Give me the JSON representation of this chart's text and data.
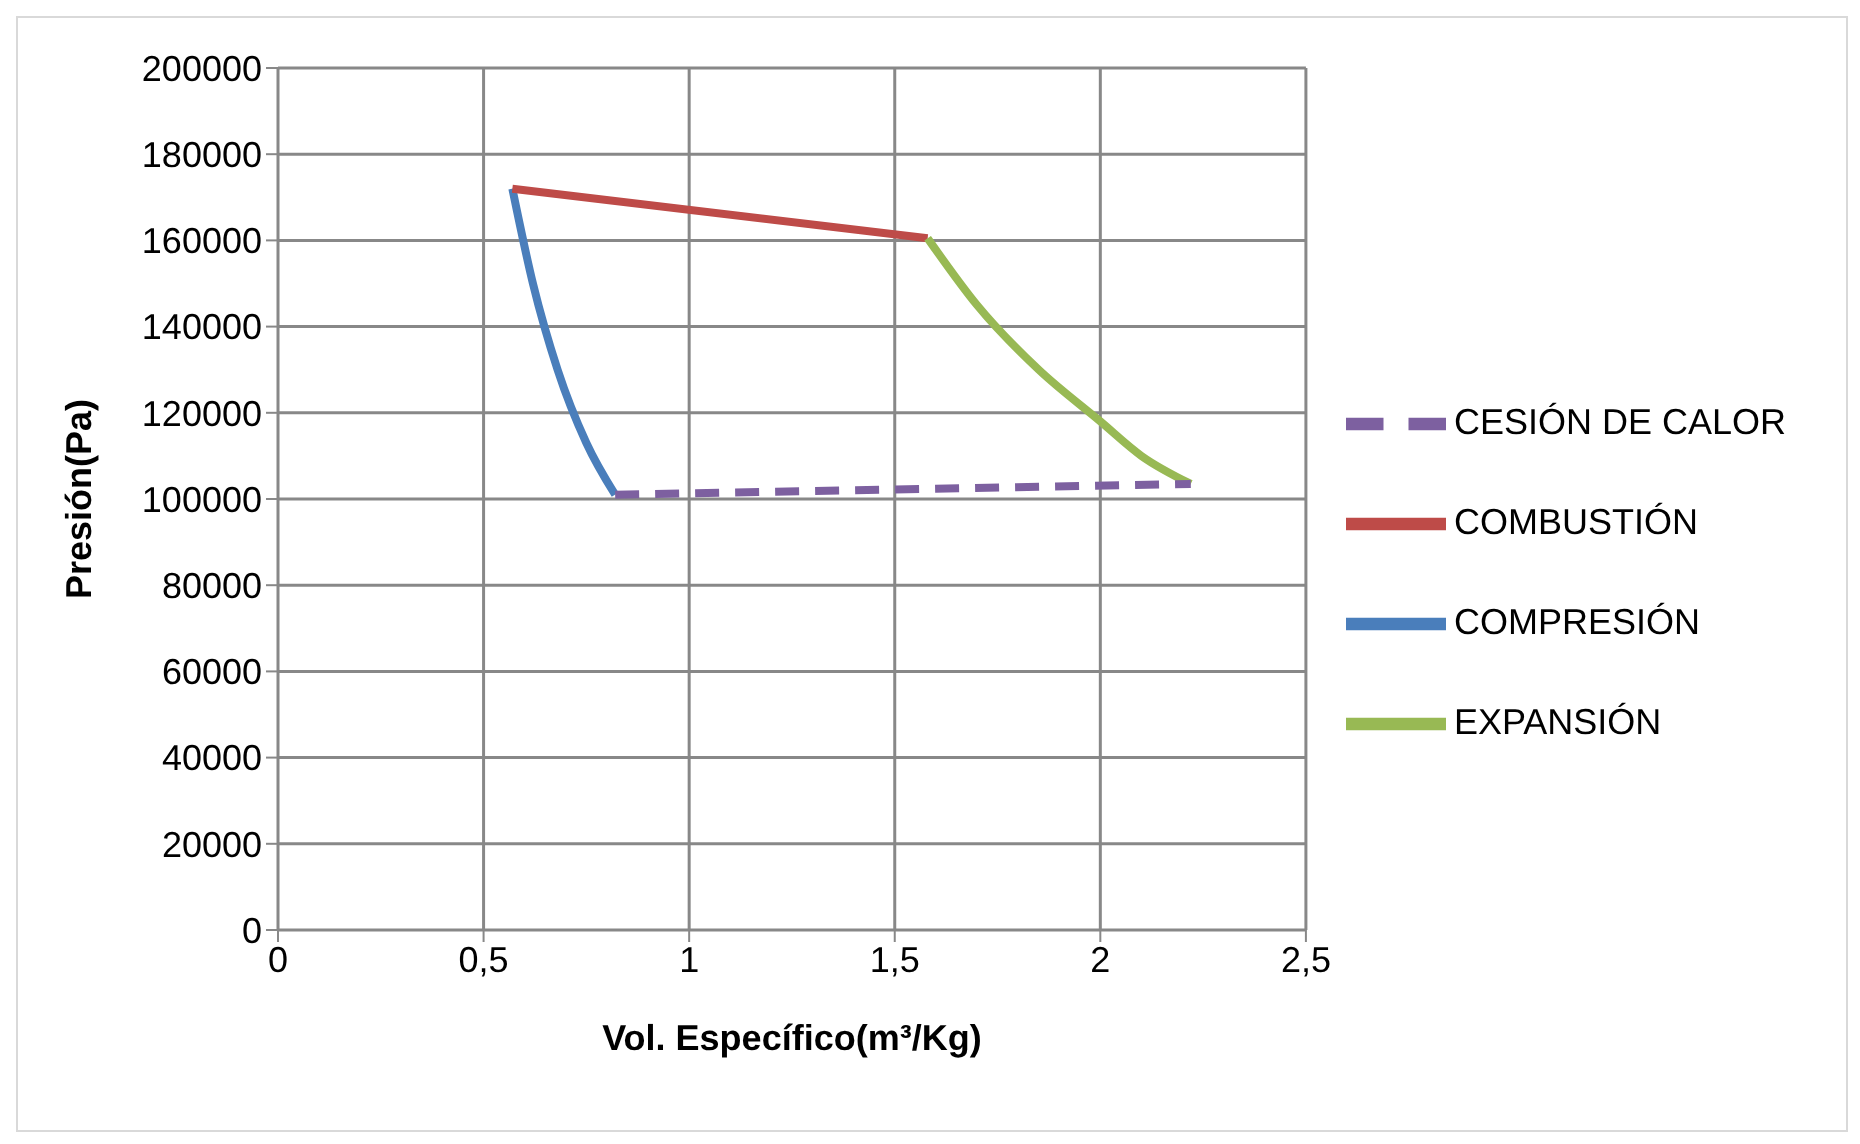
{
  "chart_data": {
    "type": "line",
    "xlabel": "Vol. Específico(m³/Kg)",
    "ylabel": "Presión(Pa)",
    "xlim": [
      0,
      2.5
    ],
    "xticks": [
      0,
      {
        "value": 0.5,
        "label": "0,5"
      },
      1,
      {
        "value": 1.5,
        "label": "1,5"
      },
      2,
      {
        "value": 2.5,
        "label": "2,5"
      }
    ],
    "ylim": [
      0,
      200000
    ],
    "yticks": [
      0,
      20000,
      40000,
      60000,
      80000,
      100000,
      120000,
      140000,
      160000,
      180000,
      200000
    ],
    "grid": true,
    "legend": "right",
    "marker": "none",
    "series": [
      {
        "name": "COMPRESIÓN",
        "color": "#4a7ebb",
        "x": [
          0.57,
          0.62,
          0.68,
          0.75,
          0.82
        ],
        "values": [
          172000,
          150000,
          130000,
          113000,
          101000
        ]
      },
      {
        "name": "COMBUSTIÓN",
        "color": "#be4b48",
        "x": [
          0.57,
          1.58
        ],
        "values": [
          172000,
          160500
        ]
      },
      {
        "name": "EXPANSIÓN",
        "color": "#98b954",
        "x": [
          1.58,
          1.7,
          1.85,
          2.0,
          2.1,
          2.22
        ],
        "values": [
          160500,
          145000,
          130000,
          118000,
          110000,
          103500
        ]
      },
      {
        "name": "CESIÓN DE CALOR",
        "color": "#7d60a0",
        "line_style": "dashed",
        "x": [
          0.82,
          2.22
        ],
        "values": [
          101000,
          103500
        ]
      }
    ]
  }
}
